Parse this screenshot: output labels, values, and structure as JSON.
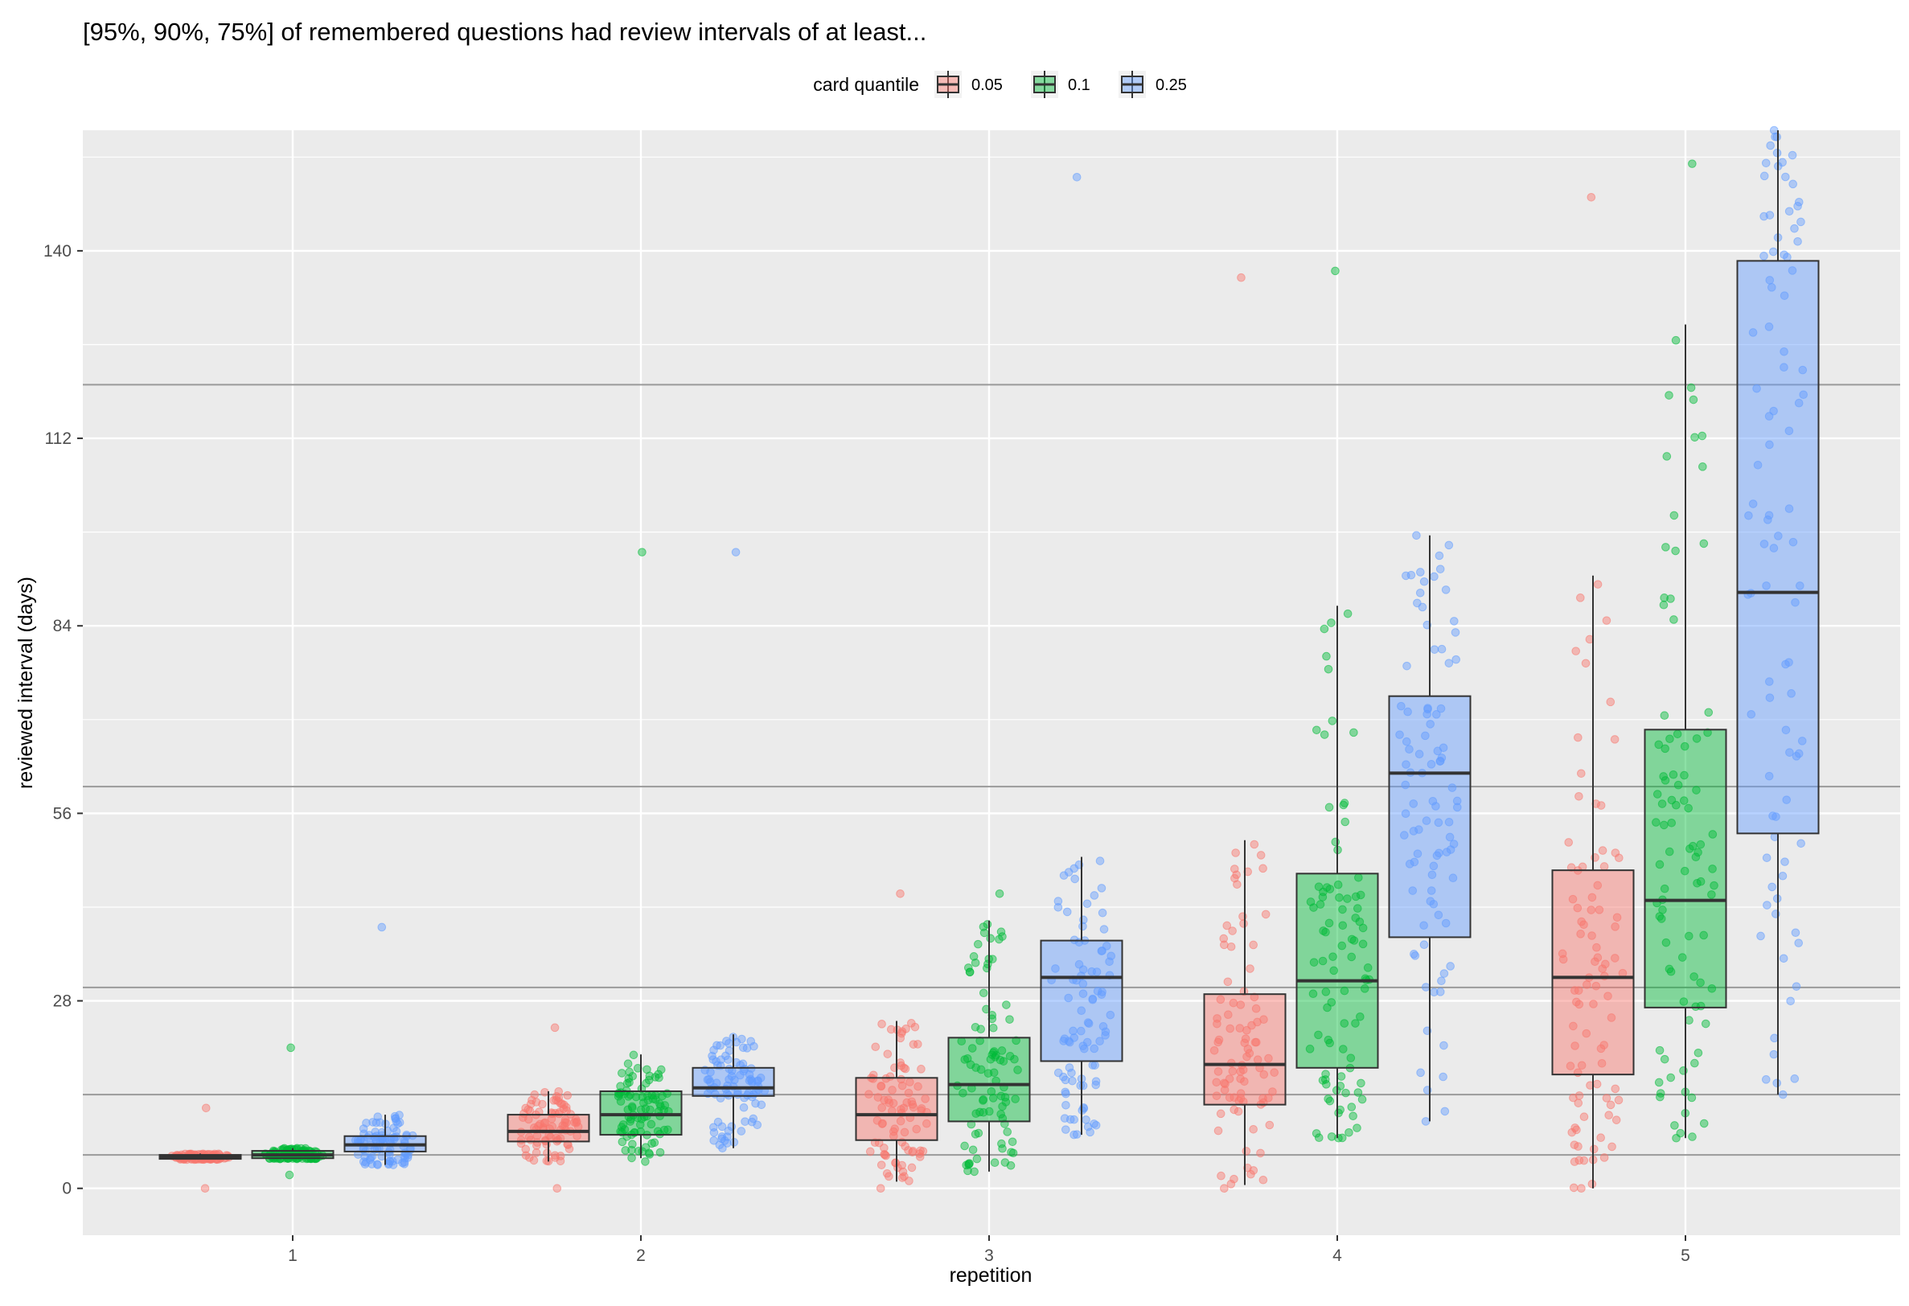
{
  "chart_data": {
    "type": "boxplot",
    "title": "[95%, 90%, 75%] of remembered questions had review intervals of at least...",
    "xlabel": "repetition",
    "ylabel": "reviewed interval (days)",
    "categories": [
      "1",
      "2",
      "3",
      "4",
      "5"
    ],
    "y_ticks": [
      0,
      28,
      56,
      84,
      112,
      140
    ],
    "ylim": [
      -7,
      158
    ],
    "grid": true,
    "legend": {
      "title": "card quantile",
      "position": "top",
      "entries": [
        "0.05",
        "0.1",
        "0.25"
      ]
    },
    "reference_lines": [
      5,
      14,
      30,
      60,
      120
    ],
    "colors": {
      "0.05": "#F8766D",
      "0.1": "#00BA38",
      "0.25": "#619CFF",
      "panel": "#EBEBEB",
      "grid": "#FFFFFF",
      "reference_line": "#9A9A9A",
      "box_stroke": "#333333"
    },
    "series": [
      {
        "name": "0.05",
        "boxes": [
          {
            "x": "1",
            "whisker_low": 4.3,
            "q1": 4.4,
            "median": 4.7,
            "q3": 5.0,
            "whisker_high": 5.2,
            "outlier_min": 0,
            "outlier_max": 12
          },
          {
            "x": "2",
            "whisker_low": 4.0,
            "q1": 7.0,
            "median": 8.5,
            "q3": 11.0,
            "whisker_high": 14.5,
            "outlier_min": 0,
            "outlier_max": 24
          },
          {
            "x": "3",
            "whisker_low": 1.0,
            "q1": 7.2,
            "median": 11.0,
            "q3": 16.5,
            "whisker_high": 25.0,
            "outlier_min": 0,
            "outlier_max": 44
          },
          {
            "x": "4",
            "whisker_low": 0.5,
            "q1": 12.5,
            "median": 18.5,
            "q3": 29.0,
            "whisker_high": 52.0,
            "outlier_min": 0,
            "outlier_max": 136
          },
          {
            "x": "5",
            "whisker_low": 0.0,
            "q1": 17.0,
            "median": 31.5,
            "q3": 47.5,
            "whisker_high": 91.5,
            "outlier_min": 0,
            "outlier_max": 148
          }
        ]
      },
      {
        "name": "0.1",
        "boxes": [
          {
            "x": "1",
            "whisker_low": 4.4,
            "q1": 4.5,
            "median": 5.0,
            "q3": 5.6,
            "whisker_high": 6.0,
            "outlier_min": 2,
            "outlier_max": 21
          },
          {
            "x": "2",
            "whisker_low": 4.5,
            "q1": 8.0,
            "median": 11.0,
            "q3": 14.5,
            "whisker_high": 20.0,
            "outlier_min": 4,
            "outlier_max": 95
          },
          {
            "x": "3",
            "whisker_low": 2.5,
            "q1": 10.0,
            "median": 15.5,
            "q3": 22.5,
            "whisker_high": 40.0,
            "outlier_min": 2.5,
            "outlier_max": 44
          },
          {
            "x": "4",
            "whisker_low": 7.5,
            "q1": 18.0,
            "median": 31.0,
            "q3": 47.0,
            "whisker_high": 87.0,
            "outlier_min": 7.5,
            "outlier_max": 137
          },
          {
            "x": "5",
            "whisker_low": 7.5,
            "q1": 27.0,
            "median": 43.0,
            "q3": 68.5,
            "whisker_high": 129.0,
            "outlier_min": 7.5,
            "outlier_max": 153
          }
        ]
      },
      {
        "name": "0.25",
        "boxes": [
          {
            "x": "1",
            "whisker_low": 3.5,
            "q1": 5.5,
            "median": 6.5,
            "q3": 7.8,
            "whisker_high": 11.0,
            "outlier_min": 3.5,
            "outlier_max": 39
          },
          {
            "x": "2",
            "whisker_low": 6.0,
            "q1": 13.8,
            "median": 15.0,
            "q3": 18.0,
            "whisker_high": 23.0,
            "outlier_min": 6.0,
            "outlier_max": 95
          },
          {
            "x": "3",
            "whisker_low": 8.0,
            "q1": 19.0,
            "median": 31.5,
            "q3": 37.0,
            "whisker_high": 49.5,
            "outlier_min": 8.0,
            "outlier_max": 151
          },
          {
            "x": "4",
            "whisker_low": 10.0,
            "q1": 37.5,
            "median": 62.0,
            "q3": 73.5,
            "whisker_high": 97.5,
            "outlier_min": 10.0,
            "outlier_max": 97.5
          },
          {
            "x": "5",
            "whisker_low": 14.0,
            "q1": 53.0,
            "median": 89.0,
            "q3": 138.5,
            "whisker_high": 158.0,
            "outlier_min": 14.0,
            "outlier_max": 158
          }
        ]
      }
    ]
  }
}
